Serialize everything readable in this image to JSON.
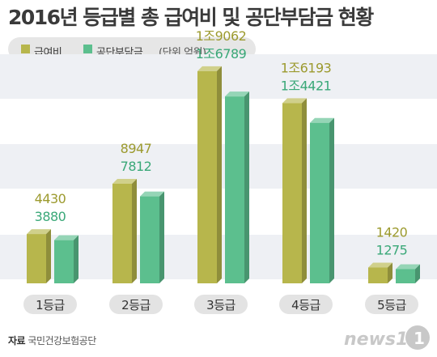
{
  "title": "2016년 등급별 총 급여비 및 공단부담금 현황",
  "legend": {
    "items": [
      {
        "label": "급여비",
        "color": "#b7b64c"
      },
      {
        "label": "공단부담금",
        "color": "#5cbf8e"
      }
    ],
    "unit": "(단위 억원)"
  },
  "chart_data": {
    "type": "bar",
    "categories": [
      "1등급",
      "2등급",
      "3등급",
      "4등급",
      "5등급"
    ],
    "series": [
      {
        "name": "급여비",
        "values": [
          4430,
          8947,
          19062,
          16193,
          1420
        ],
        "labels": [
          "4430",
          "8947",
          "1조9062",
          "1조6193",
          "1420"
        ],
        "color": "#b7b64c"
      },
      {
        "name": "공단부담금",
        "values": [
          3880,
          7812,
          16789,
          14421,
          1275
        ],
        "labels": [
          "3880",
          "7812",
          "1조6789",
          "1조4421",
          "1275"
        ],
        "color": "#5cbf8e"
      }
    ],
    "ylim": [
      0,
      20000
    ],
    "label_colors": {
      "series1": "#9c9a2e",
      "series2": "#3aa878"
    },
    "background_bands": true
  },
  "footer": {
    "source_label": "자료",
    "source_text": "국민건강보험공단",
    "brand": "news1"
  }
}
